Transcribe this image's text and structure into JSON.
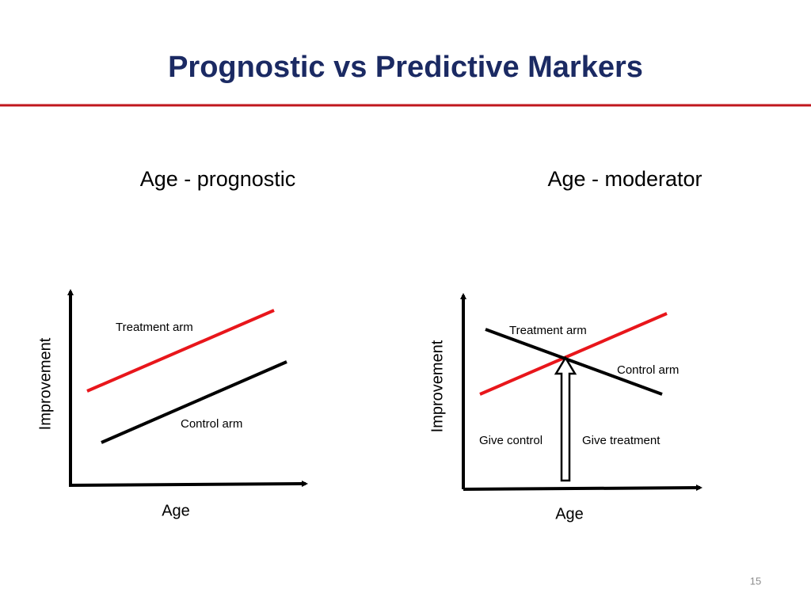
{
  "title": "Prognostic vs Predictive Markers",
  "panels": [
    {
      "heading": "Age - prognostic",
      "y_label": "Improvement",
      "x_label": "Age",
      "labels": [
        "Treatment arm",
        "Control arm"
      ]
    },
    {
      "heading": "Age - moderator",
      "y_label": "Improvement",
      "x_label": "Age",
      "labels": [
        "Treatment arm",
        "Control arm",
        "Give control",
        "Give treatment"
      ]
    }
  ],
  "page_number": "15"
}
